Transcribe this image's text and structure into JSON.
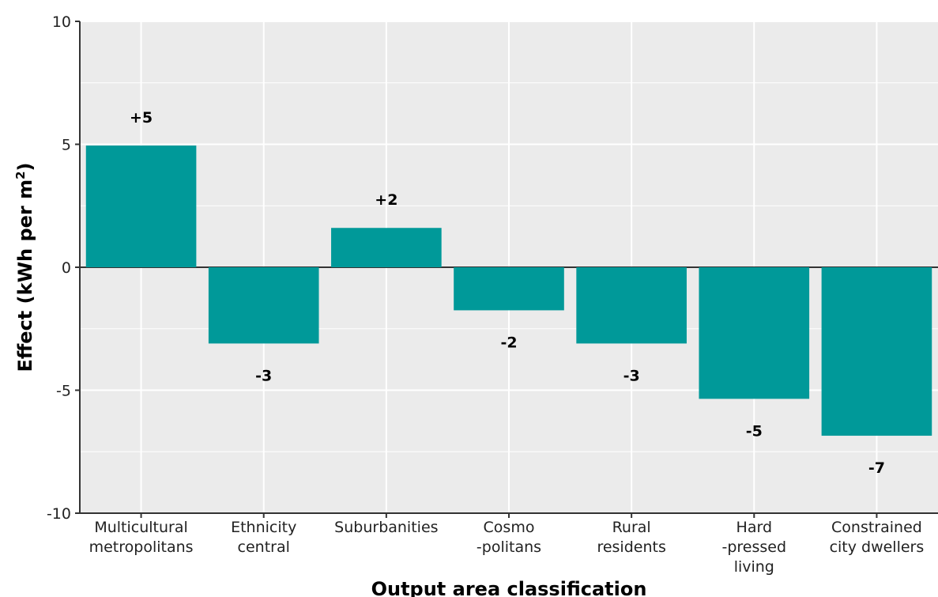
{
  "chart_data": {
    "type": "bar",
    "categories": [
      [
        "Multicultural",
        "metropolitans"
      ],
      [
        "Ethnicity",
        "central"
      ],
      [
        "Suburbanities"
      ],
      [
        "Cosmo",
        "-politans"
      ],
      [
        "Rural",
        "residents"
      ],
      [
        "Hard",
        "-pressed",
        "living"
      ],
      [
        "Constrained",
        "city dwellers"
      ]
    ],
    "values": [
      4.95,
      -3.1,
      1.6,
      -1.75,
      -3.1,
      -5.35,
      -6.85
    ],
    "data_labels": [
      "+5",
      "-3",
      "+2",
      "-2",
      "-3",
      "-5",
      "-7"
    ],
    "xlabel": "Output area classification",
    "ylabel": "Effect (kWh per m",
    "ylabel_superscript": "2",
    "ylabel_suffix": ")",
    "ylim": [
      -10,
      10
    ],
    "yticks": [
      10,
      5,
      0,
      -5,
      -10
    ],
    "ytick_labels": [
      "10",
      "5",
      "0",
      "-5",
      "-10"
    ],
    "grid": true,
    "colors": {
      "bar": "#009999",
      "panel": "#ebebeb",
      "grid": "#ffffff",
      "zero_line": "#333333"
    }
  }
}
